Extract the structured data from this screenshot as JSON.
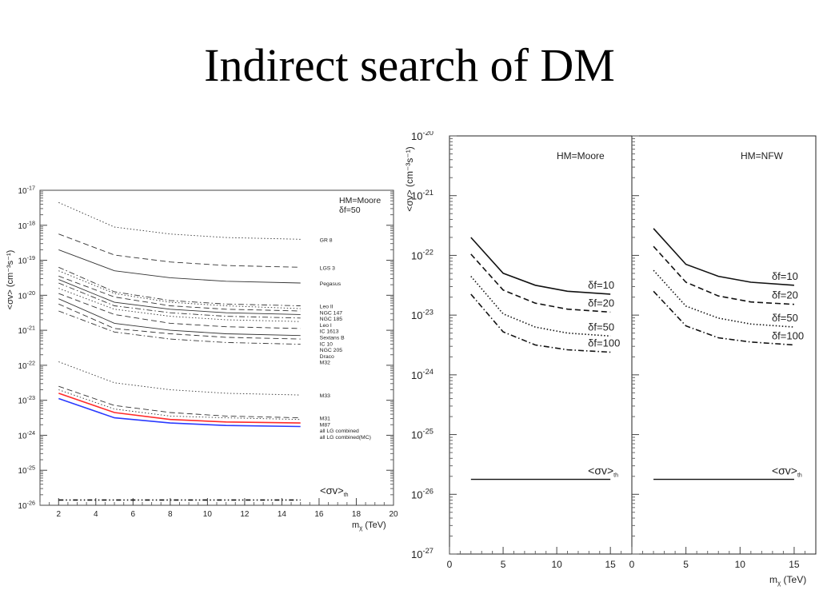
{
  "slide": {
    "title": "Indirect search of DM"
  },
  "chart_data": [
    {
      "type": "line",
      "log_y": true,
      "xlim": [
        1,
        20
      ],
      "ylim_exp": [
        -26,
        -17
      ],
      "xticks": [
        2,
        4,
        6,
        8,
        10,
        12,
        14,
        16,
        18,
        20
      ],
      "xlabel": "m",
      "xlabel_sub": "χ",
      "xlabel_unit": " (TeV)",
      "ylabel": "<σv> (cm⁻³s⁻¹)",
      "annotation_lines": [
        "HM=Moore",
        "δf=50"
      ],
      "threshold_label": "<σv>",
      "threshold_sub": "th",
      "series": [
        {
          "name": "GR 8",
          "x": [
            2,
            5,
            8,
            11,
            15
          ],
          "y": [
            -17.35,
            -18.05,
            -18.25,
            -18.35,
            -18.4
          ],
          "style": "dotted",
          "color": "#333333"
        },
        {
          "name": "LGS 3",
          "x": [
            2,
            5,
            8,
            11,
            15
          ],
          "y": [
            -18.25,
            -18.85,
            -19.05,
            -19.15,
            -19.2
          ],
          "style": "dashed",
          "color": "#333333"
        },
        {
          "name": "Pegasus",
          "x": [
            2,
            5,
            8,
            11,
            15
          ],
          "y": [
            -18.7,
            -19.3,
            -19.5,
            -19.6,
            -19.65
          ],
          "style": "solid",
          "color": "#333333"
        },
        {
          "name": "Leo II",
          "x": [
            2,
            5,
            8,
            11,
            15
          ],
          "y": [
            -19.2,
            -19.9,
            -20.15,
            -20.25,
            -20.3
          ],
          "style": "dashdot",
          "color": "#333333"
        },
        {
          "name": "NGC 147",
          "x": [
            2,
            5,
            8,
            11,
            15
          ],
          "y": [
            -19.3,
            -19.95,
            -20.2,
            -20.3,
            -20.38
          ],
          "style": "dotted",
          "color": "#333333"
        },
        {
          "name": "NGC 185",
          "x": [
            2,
            5,
            8,
            11,
            15
          ],
          "y": [
            -19.45,
            -20.05,
            -20.3,
            -20.4,
            -20.45
          ],
          "style": "dashed",
          "color": "#333333"
        },
        {
          "name": "Leo I",
          "x": [
            2,
            5,
            8,
            11,
            15
          ],
          "y": [
            -19.55,
            -20.2,
            -20.4,
            -20.5,
            -20.55
          ],
          "style": "solid",
          "color": "#333333"
        },
        {
          "name": "IC 1613",
          "x": [
            2,
            5,
            8,
            11,
            15
          ],
          "y": [
            -19.65,
            -20.3,
            -20.5,
            -20.6,
            -20.65
          ],
          "style": "dashdot",
          "color": "#333333"
        },
        {
          "name": "Sextans B",
          "x": [
            2,
            5,
            8,
            11,
            15
          ],
          "y": [
            -19.8,
            -20.4,
            -20.6,
            -20.7,
            -20.75
          ],
          "style": "dotted",
          "color": "#333333"
        },
        {
          "name": "IC 10",
          "x": [
            2,
            5,
            8,
            11,
            15
          ],
          "y": [
            -19.95,
            -20.55,
            -20.8,
            -20.9,
            -20.95
          ],
          "style": "dashed",
          "color": "#333333"
        },
        {
          "name": "NGC 205",
          "x": [
            2,
            5,
            8,
            11,
            15
          ],
          "y": [
            -20.1,
            -20.8,
            -21.0,
            -21.1,
            -21.15
          ],
          "style": "solid",
          "color": "#333333"
        },
        {
          "name": "Draco",
          "x": [
            2,
            5,
            8,
            11,
            15
          ],
          "y": [
            -20.25,
            -20.95,
            -21.1,
            -21.2,
            -21.25
          ],
          "style": "dashed",
          "color": "#333333"
        },
        {
          "name": "M32",
          "x": [
            2,
            5,
            8,
            11,
            15
          ],
          "y": [
            -20.45,
            -21.05,
            -21.25,
            -21.35,
            -21.4
          ],
          "style": "dashdot",
          "color": "#333333"
        },
        {
          "name": "M33",
          "x": [
            2,
            5,
            8,
            11,
            15
          ],
          "y": [
            -21.9,
            -22.5,
            -22.7,
            -22.8,
            -22.85
          ],
          "style": "dotted",
          "color": "#333333"
        },
        {
          "name": "M31",
          "x": [
            2,
            5,
            8,
            11,
            15
          ],
          "y": [
            -22.6,
            -23.15,
            -23.35,
            -23.45,
            -23.5
          ],
          "style": "dashed",
          "color": "#333333"
        },
        {
          "name": "M87",
          "x": [
            2,
            5,
            8,
            11,
            15
          ],
          "y": [
            -22.7,
            -23.25,
            -23.45,
            -23.5,
            -23.55
          ],
          "style": "dotted",
          "color": "#333333"
        },
        {
          "name": "all LG combined",
          "x": [
            2,
            5,
            8,
            11,
            15
          ],
          "y": [
            -22.8,
            -23.35,
            -23.55,
            -23.62,
            -23.65
          ],
          "style": "solid",
          "color": "#ff2a2a"
        },
        {
          "name": "all LG combined(MC)",
          "x": [
            2,
            5,
            8,
            11,
            15
          ],
          "y": [
            -22.95,
            -23.5,
            -23.65,
            -23.72,
            -23.75
          ],
          "style": "solid",
          "color": "#2a3aff"
        }
      ],
      "threshold": {
        "x": [
          2,
          15
        ],
        "y": [
          -25.85,
          -25.85
        ],
        "style": "dashdotdot",
        "color": "#111111"
      }
    },
    {
      "type": "line",
      "log_y": true,
      "ylim_exp": [
        -27,
        -20
      ],
      "ylabel": "<σv> (cm⁻³s⁻¹)",
      "xlabel": "m",
      "xlabel_sub": "χ",
      "xlabel_unit": " (TeV)",
      "panels": [
        {
          "title": "HM=Moore",
          "xlim": [
            0,
            17
          ],
          "xticks": [
            0,
            5,
            10,
            15
          ],
          "series": [
            {
              "name": "δf=10",
              "x": [
                2,
                5,
                8,
                11,
                15
              ],
              "y": [
                -21.7,
                -22.3,
                -22.5,
                -22.6,
                -22.65
              ],
              "style": "solid"
            },
            {
              "name": "δf=20",
              "x": [
                2,
                5,
                8,
                11,
                15
              ],
              "y": [
                -21.98,
                -22.58,
                -22.8,
                -22.9,
                -22.95
              ],
              "style": "dashed"
            },
            {
              "name": "δf=50",
              "x": [
                2,
                5,
                8,
                11,
                15
              ],
              "y": [
                -22.35,
                -22.98,
                -23.2,
                -23.3,
                -23.35
              ],
              "style": "dotted"
            },
            {
              "name": "δf=100",
              "x": [
                2,
                5,
                8,
                11,
                15
              ],
              "y": [
                -22.65,
                -23.28,
                -23.5,
                -23.58,
                -23.62
              ],
              "style": "dashdot"
            }
          ],
          "threshold": {
            "label": "<σv>",
            "sub": "th",
            "x": [
              2,
              15
            ],
            "y": -25.75
          }
        },
        {
          "title": "HM=NFW",
          "xlim": [
            0,
            17
          ],
          "xticks": [
            0,
            5,
            10,
            15
          ],
          "series": [
            {
              "name": "δf=10",
              "x": [
                2,
                5,
                8,
                11,
                15
              ],
              "y": [
                -21.55,
                -22.15,
                -22.35,
                -22.45,
                -22.5
              ],
              "style": "solid"
            },
            {
              "name": "δf=20",
              "x": [
                2,
                5,
                8,
                11,
                15
              ],
              "y": [
                -21.85,
                -22.45,
                -22.68,
                -22.78,
                -22.82
              ],
              "style": "dashed"
            },
            {
              "name": "δf=50",
              "x": [
                2,
                5,
                8,
                11,
                15
              ],
              "y": [
                -22.25,
                -22.85,
                -23.05,
                -23.15,
                -23.2
              ],
              "style": "dotted"
            },
            {
              "name": "δf=100",
              "x": [
                2,
                5,
                8,
                11,
                15
              ],
              "y": [
                -22.6,
                -23.18,
                -23.38,
                -23.45,
                -23.5
              ],
              "style": "dashdot"
            }
          ],
          "threshold": {
            "label": "<σv>",
            "sub": "th",
            "x": [
              2,
              15
            ],
            "y": -25.75
          }
        }
      ]
    }
  ]
}
